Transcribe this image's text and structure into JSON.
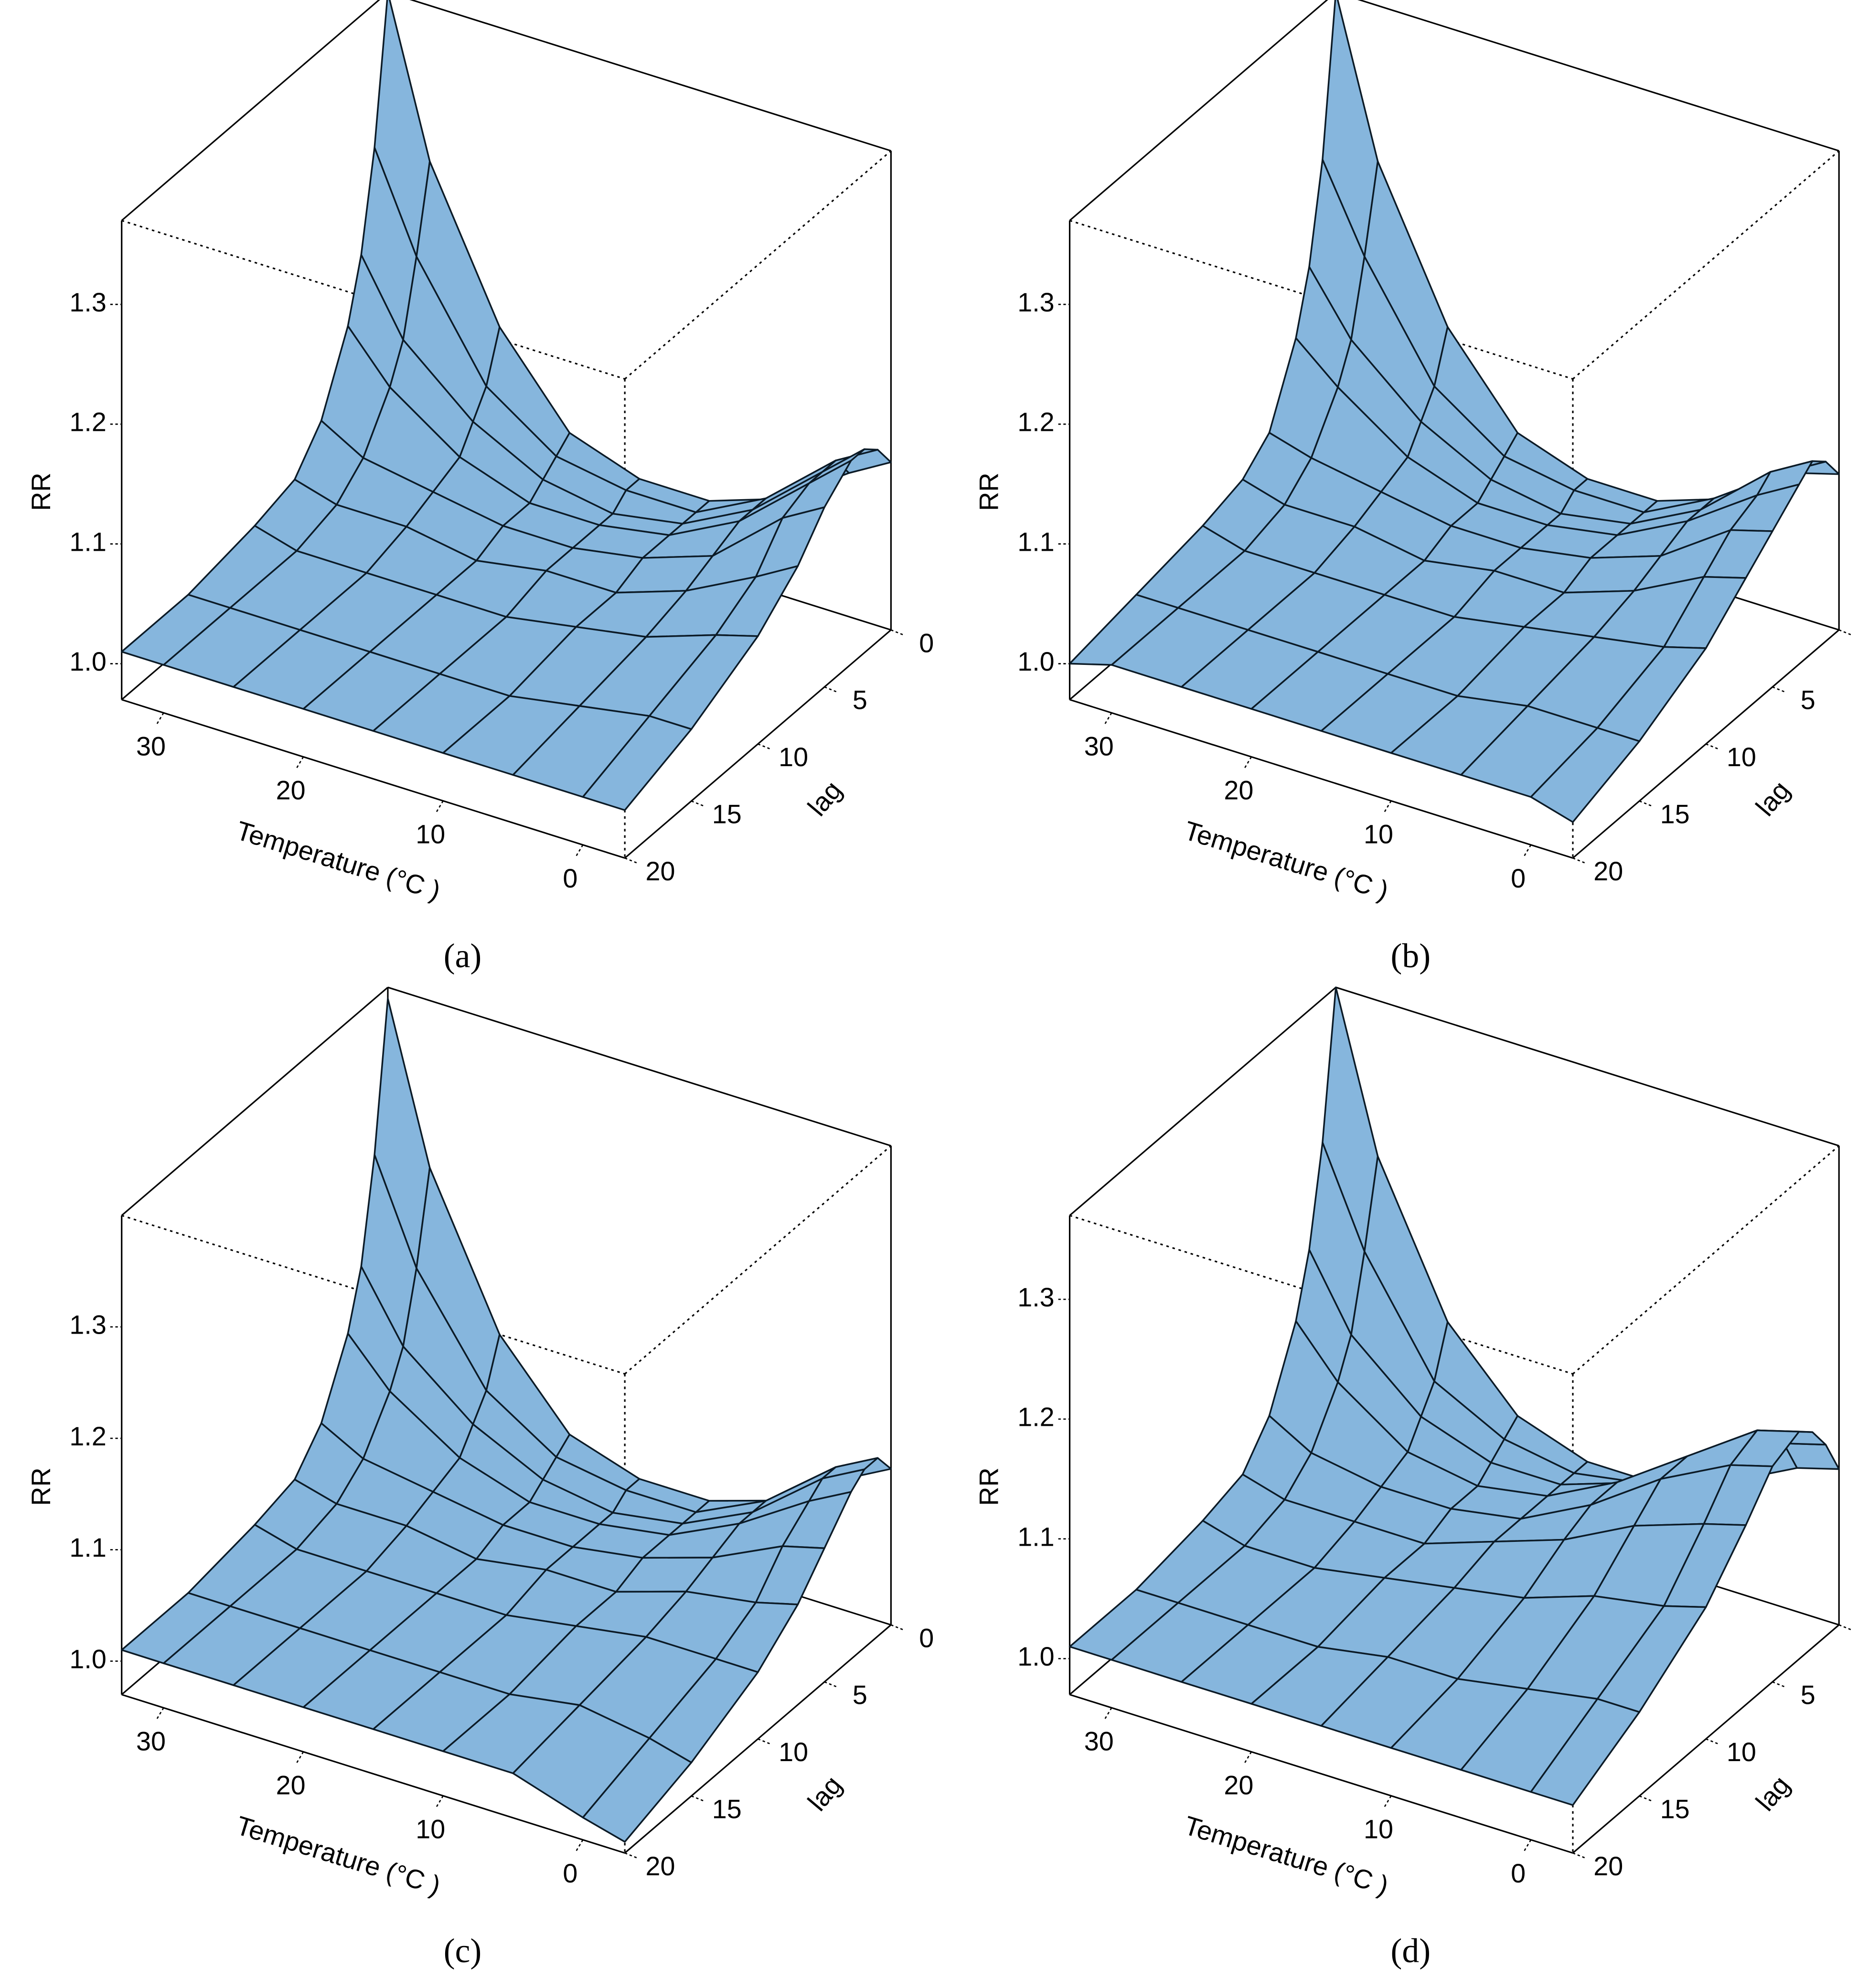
{
  "chart_data": [
    {
      "type": "surface3d",
      "caption": "(a)",
      "x_label": "Temperature (°C )",
      "y_label": "lag",
      "z_label": "RR",
      "color": "#86b6dd",
      "x": [
        -3,
        0,
        5,
        10,
        15,
        20,
        25,
        30,
        33
      ],
      "y": [
        0,
        1,
        2,
        3,
        5,
        7,
        10,
        15,
        20
      ],
      "z": [
        [
          1.11,
          1.13,
          1.14,
          1.14,
          1.12,
          1.09,
          1.06,
          1.03,
          1.01
        ],
        [
          1.09,
          1.11,
          1.11,
          1.11,
          1.1,
          1.07,
          1.05,
          1.03,
          1.01
        ],
        [
          1.05,
          1.06,
          1.06,
          1.06,
          1.05,
          1.04,
          1.03,
          1.02,
          1.01
        ],
        [
          1.03,
          1.03,
          1.03,
          1.03,
          1.03,
          1.02,
          1.02,
          1.01,
          1.01
        ],
        [
          1.03,
          1.03,
          1.02,
          1.02,
          1.02,
          1.02,
          1.01,
          1.01,
          1.01
        ],
        [
          1.05,
          1.04,
          1.03,
          1.02,
          1.02,
          1.01,
          1.01,
          1.01,
          1.01
        ],
        [
          1.12,
          1.08,
          1.06,
          1.04,
          1.03,
          1.02,
          1.01,
          1.01,
          1.01
        ],
        [
          1.24,
          1.17,
          1.11,
          1.08,
          1.04,
          1.02,
          1.01,
          1.01,
          1.01
        ],
        [
          1.37,
          1.25,
          1.17,
          1.12,
          1.06,
          1.03,
          1.02,
          1.01,
          1.01
        ]
      ],
      "xlim": [
        -3,
        33
      ],
      "ylim": [
        0,
        20
      ],
      "zlim": [
        0.97,
        1.37
      ],
      "xticks": [
        0,
        10,
        20,
        30
      ],
      "yticks": [
        0,
        5,
        10,
        15,
        20
      ],
      "zticks": [
        {
          "value": 1,
          "label": "1.0"
        },
        1.1,
        1.2,
        1.3
      ]
    },
    {
      "type": "surface3d",
      "caption": "(b)",
      "x_label": "Temperature (°C )",
      "y_label": "lag",
      "z_label": "RR",
      "color": "#86b6dd",
      "x": [
        -3,
        0,
        5,
        10,
        15,
        20,
        25,
        30,
        33
      ],
      "y": [
        0,
        1,
        2,
        3,
        5,
        7,
        10,
        15,
        20
      ],
      "z": [
        [
          1.1,
          1.12,
          1.13,
          1.12,
          1.1,
          1.08,
          1.05,
          1.02,
          1.0
        ],
        [
          1.09,
          1.1,
          1.11,
          1.1,
          1.09,
          1.07,
          1.04,
          1.02,
          1.01
        ],
        [
          1.05,
          1.06,
          1.06,
          1.06,
          1.05,
          1.04,
          1.03,
          1.02,
          1.01
        ],
        [
          1.03,
          1.03,
          1.03,
          1.03,
          1.03,
          1.02,
          1.02,
          1.01,
          1.01
        ],
        [
          1.03,
          1.03,
          1.02,
          1.02,
          1.02,
          1.02,
          1.01,
          1.01,
          1.01
        ],
        [
          1.05,
          1.04,
          1.03,
          1.02,
          1.02,
          1.01,
          1.01,
          1.01,
          1.01
        ],
        [
          1.12,
          1.08,
          1.06,
          1.04,
          1.03,
          1.02,
          1.01,
          1.01,
          1.01
        ],
        [
          1.24,
          1.17,
          1.11,
          1.08,
          1.04,
          1.02,
          1.01,
          1.01,
          1.01
        ],
        [
          1.37,
          1.24,
          1.16,
          1.11,
          1.05,
          1.03,
          1.02,
          1.01,
          1.0
        ]
      ],
      "xlim": [
        -3,
        33
      ],
      "ylim": [
        0,
        20
      ],
      "zlim": [
        0.97,
        1.37
      ],
      "xticks": [
        0,
        10,
        20,
        30
      ],
      "yticks": [
        0,
        5,
        10,
        15,
        20
      ],
      "zticks": [
        {
          "value": 1,
          "label": "1.0"
        },
        1.1,
        1.2,
        1.3
      ]
    },
    {
      "type": "surface3d",
      "caption": "(c)",
      "x_label": "Temperature (°C )",
      "y_label": "lag",
      "z_label": "RR",
      "color": "#86b6dd",
      "x": [
        -3,
        0,
        5,
        10,
        15,
        20,
        25,
        30,
        33
      ],
      "y": [
        0,
        1,
        2,
        3,
        5,
        7,
        10,
        15,
        20
      ],
      "z": [
        [
          1.11,
          1.13,
          1.13,
          1.12,
          1.09,
          1.06,
          1.03,
          1.0,
          0.98
        ],
        [
          1.09,
          1.11,
          1.11,
          1.1,
          1.08,
          1.05,
          1.03,
          1.01,
          0.99
        ],
        [
          1.05,
          1.06,
          1.06,
          1.06,
          1.05,
          1.04,
          1.03,
          1.02,
          1.01
        ],
        [
          1.03,
          1.03,
          1.03,
          1.03,
          1.03,
          1.02,
          1.02,
          1.01,
          1.01
        ],
        [
          1.03,
          1.03,
          1.02,
          1.02,
          1.02,
          1.02,
          1.01,
          1.01,
          1.01
        ],
        [
          1.05,
          1.04,
          1.03,
          1.02,
          1.02,
          1.01,
          1.01,
          1.01,
          1.01
        ],
        [
          1.12,
          1.08,
          1.06,
          1.04,
          1.03,
          1.02,
          1.01,
          1.01,
          1.01
        ],
        [
          1.25,
          1.17,
          1.11,
          1.08,
          1.04,
          1.02,
          1.01,
          1.01,
          1.01
        ],
        [
          1.39,
          1.26,
          1.17,
          1.12,
          1.06,
          1.03,
          1.02,
          1.01,
          1.01
        ]
      ],
      "xlim": [
        -3,
        33
      ],
      "ylim": [
        0,
        20
      ],
      "zlim": [
        0.97,
        1.4
      ],
      "xticks": [
        0,
        10,
        20,
        30
      ],
      "yticks": [
        0,
        5,
        10,
        15,
        20
      ],
      "zticks": [
        {
          "value": 1,
          "label": "1.0"
        },
        1.1,
        1.2,
        1.3
      ]
    },
    {
      "type": "surface3d",
      "caption": "(d)",
      "x_label": "Temperature (°C )",
      "y_label": "lag",
      "z_label": "RR",
      "color": "#86b6dd",
      "x": [
        -3,
        0,
        5,
        10,
        15,
        20,
        25,
        30,
        33
      ],
      "y": [
        0,
        1,
        2,
        3,
        5,
        7,
        10,
        15,
        20
      ],
      "z": [
        [
          1.1,
          1.13,
          1.15,
          1.16,
          1.15,
          1.12,
          1.08,
          1.04,
          1.01
        ],
        [
          1.09,
          1.12,
          1.14,
          1.15,
          1.14,
          1.11,
          1.07,
          1.04,
          1.01
        ],
        [
          1.06,
          1.08,
          1.1,
          1.11,
          1.11,
          1.09,
          1.06,
          1.03,
          1.01
        ],
        [
          1.04,
          1.05,
          1.06,
          1.07,
          1.07,
          1.06,
          1.04,
          1.02,
          1.01
        ],
        [
          1.04,
          1.04,
          1.04,
          1.04,
          1.04,
          1.04,
          1.03,
          1.02,
          1.01
        ],
        [
          1.06,
          1.05,
          1.04,
          1.03,
          1.03,
          1.02,
          1.02,
          1.01,
          1.01
        ],
        [
          1.12,
          1.08,
          1.06,
          1.04,
          1.03,
          1.02,
          1.01,
          1.01,
          1.01
        ],
        [
          1.24,
          1.17,
          1.11,
          1.08,
          1.04,
          1.02,
          1.01,
          1.01,
          1.01
        ],
        [
          1.37,
          1.25,
          1.17,
          1.12,
          1.06,
          1.03,
          1.02,
          1.01,
          1.01
        ]
      ],
      "xlim": [
        -3,
        33
      ],
      "ylim": [
        0,
        20
      ],
      "zlim": [
        0.97,
        1.37
      ],
      "xticks": [
        0,
        10,
        20,
        30
      ],
      "yticks": [
        0,
        5,
        10,
        15,
        20
      ],
      "zticks": [
        {
          "value": 1,
          "label": "1.0"
        },
        1.1,
        1.2,
        1.3
      ]
    }
  ]
}
